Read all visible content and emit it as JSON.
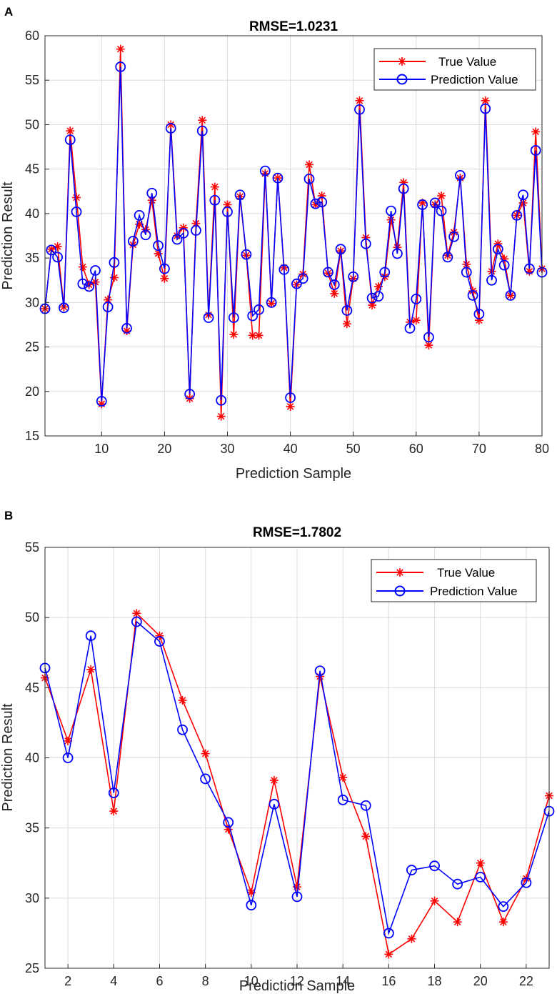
{
  "colors": {
    "true_series": "#ff0000",
    "pred_series": "#0000ff",
    "grid": "#dcdcdc",
    "axis": "#262626"
  },
  "chart_data": [
    {
      "panel_label": "A",
      "type": "line",
      "title": "RMSE=1.0231",
      "xlabel": "Prediction Sample",
      "ylabel": "Prediction Result",
      "xlim": [
        1,
        80
      ],
      "ylim": [
        15,
        60
      ],
      "xticks": [
        10,
        20,
        30,
        40,
        50,
        60,
        70,
        80
      ],
      "yticks": [
        15,
        20,
        25,
        30,
        35,
        40,
        45,
        50,
        55,
        60
      ],
      "grid": true,
      "legend_position": "top-right",
      "series": [
        {
          "name": "True Value",
          "marker": "asterisk",
          "values": [
            29.3,
            36.0,
            36.3,
            29.5,
            49.3,
            41.8,
            34.0,
            32.0,
            32.3,
            18.6,
            30.3,
            32.8,
            58.5,
            26.8,
            36.5,
            38.8,
            38.2,
            41.5,
            35.5,
            32.7,
            50.0,
            37.5,
            38.4,
            19.2,
            38.9,
            50.5,
            28.6,
            43.0,
            17.2,
            41.0,
            26.4,
            41.9,
            35.3,
            26.3,
            26.3,
            44.5,
            29.9,
            44.0,
            33.9,
            18.3,
            32.0,
            33.2,
            45.5,
            41.0,
            42.0,
            33.3,
            31.0,
            35.8,
            27.6,
            32.7,
            52.7,
            37.3,
            29.7,
            31.8,
            32.9,
            39.3,
            36.2,
            43.5,
            27.8,
            28.0,
            41.2,
            25.2,
            41.0,
            42.0,
            35.3,
            37.9,
            44.0,
            34.3,
            31.3,
            28.0,
            52.7,
            33.5,
            36.6,
            34.9,
            30.8,
            39.8,
            41.2,
            33.5,
            49.2,
            33.8
          ]
        },
        {
          "name": "Prediction Value",
          "marker": "circle",
          "values": [
            29.3,
            35.9,
            35.1,
            29.4,
            48.3,
            40.2,
            32.1,
            31.8,
            33.6,
            18.9,
            29.5,
            34.5,
            56.5,
            27.1,
            36.9,
            39.8,
            37.6,
            42.3,
            36.4,
            33.8,
            49.6,
            37.1,
            37.8,
            19.7,
            38.1,
            49.3,
            28.3,
            41.5,
            19.0,
            40.2,
            28.3,
            42.1,
            35.4,
            28.5,
            29.2,
            44.8,
            30.0,
            44.0,
            33.7,
            19.3,
            32.1,
            32.7,
            43.9,
            41.1,
            41.3,
            33.4,
            32.0,
            36.0,
            29.1,
            32.9,
            51.7,
            36.6,
            30.5,
            30.7,
            33.4,
            40.3,
            35.5,
            42.8,
            27.1,
            30.4,
            41.0,
            26.1,
            41.2,
            40.3,
            35.1,
            37.4,
            44.3,
            33.4,
            30.8,
            28.7,
            51.8,
            32.5,
            36.0,
            34.2,
            30.8,
            39.8,
            42.1,
            33.8,
            47.1,
            33.4
          ]
        }
      ]
    },
    {
      "panel_label": "B",
      "type": "line",
      "title": "RMSE=1.7802",
      "xlabel": "Prediction Sample",
      "ylabel": "Prediction Result",
      "xlim": [
        1,
        23
      ],
      "ylim": [
        25,
        55
      ],
      "xticks": [
        2,
        4,
        6,
        8,
        10,
        12,
        14,
        16,
        18,
        20,
        22
      ],
      "yticks": [
        25,
        30,
        35,
        40,
        45,
        50,
        55
      ],
      "grid": true,
      "legend_position": "top-right",
      "series": [
        {
          "name": "True Value",
          "marker": "asterisk",
          "values": [
            45.7,
            41.2,
            46.3,
            36.2,
            50.3,
            48.7,
            44.1,
            40.3,
            34.9,
            30.4,
            38.4,
            30.8,
            45.8,
            38.6,
            34.4,
            26.0,
            27.1,
            29.8,
            28.3,
            32.5,
            28.3,
            31.4,
            37.3
          ]
        },
        {
          "name": "Prediction Value",
          "marker": "circle",
          "values": [
            46.4,
            40.0,
            48.7,
            37.5,
            49.7,
            48.3,
            42.0,
            38.5,
            35.4,
            29.5,
            36.7,
            30.1,
            46.2,
            37.0,
            36.6,
            27.5,
            32.0,
            32.3,
            31.0,
            31.5,
            29.4,
            31.1,
            36.2
          ]
        }
      ]
    }
  ]
}
